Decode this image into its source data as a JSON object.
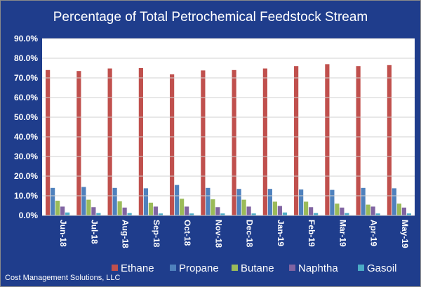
{
  "chart_data": {
    "type": "bar",
    "title": "Percentage of Total Petrochemical Feedstock Stream",
    "xlabel": "",
    "ylabel": "",
    "ylim": [
      0,
      90
    ],
    "ytick_labels": [
      "0.0%",
      "10.0%",
      "20.0%",
      "30.0%",
      "40.0%",
      "50.0%",
      "60.0%",
      "70.0%",
      "80.0%",
      "90.0%"
    ],
    "categories": [
      "Jun-18",
      "Jul-18",
      "Aug-18",
      "Sep-18",
      "Oct-18",
      "Nov-18",
      "Dec-18",
      "Jan-19",
      "Feb-19",
      "Mar-19",
      "Apr-19",
      "May-19"
    ],
    "series": [
      {
        "name": "Ethane",
        "color": "#c0504d",
        "values": [
          74.0,
          73.5,
          74.8,
          75.0,
          71.8,
          73.8,
          74.0,
          74.8,
          76.0,
          77.0,
          76.0,
          76.5
        ]
      },
      {
        "name": "Propane",
        "color": "#4f81bd",
        "values": [
          14.0,
          14.5,
          14.0,
          13.8,
          15.5,
          14.0,
          13.5,
          13.5,
          13.2,
          13.0,
          14.0,
          13.8
        ]
      },
      {
        "name": "Butane",
        "color": "#9bbb59",
        "values": [
          7.5,
          8.0,
          7.2,
          6.5,
          8.5,
          8.2,
          8.0,
          7.0,
          7.0,
          6.0,
          5.5,
          6.0
        ]
      },
      {
        "name": "Naphtha",
        "color": "#8064a2",
        "values": [
          4.5,
          4.2,
          4.0,
          4.5,
          4.5,
          4.2,
          4.5,
          4.8,
          4.2,
          4.0,
          4.5,
          4.0
        ]
      },
      {
        "name": "Gasoil",
        "color": "#4bacc6",
        "values": [
          1.5,
          1.2,
          1.2,
          1.0,
          1.0,
          1.0,
          1.0,
          1.5,
          1.2,
          1.2,
          1.0,
          1.0
        ]
      }
    ],
    "grid": true,
    "legend_position": "bottom"
  },
  "source_note": "Cost Management Solutions, LLC",
  "colors": {
    "background": "#1f3d8c",
    "plot_area": "#ffffff",
    "text": "#ffffff"
  }
}
